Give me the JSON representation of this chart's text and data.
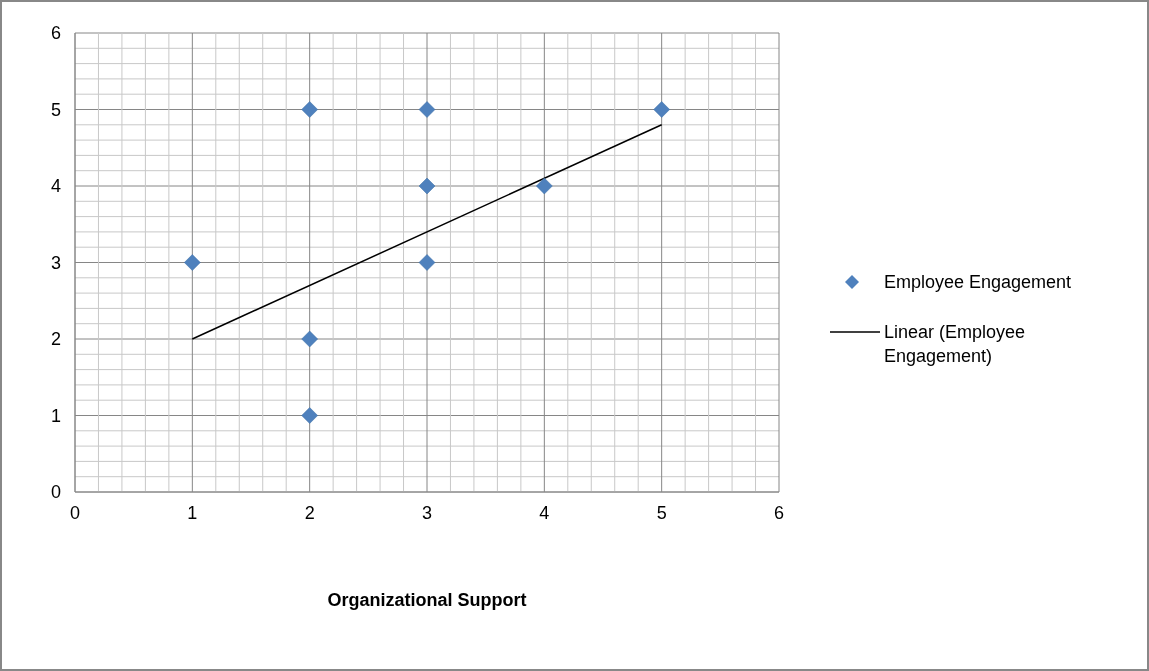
{
  "chart_data": {
    "type": "scatter",
    "xlabel": "Organizational Support",
    "legend": "right",
    "grid": true,
    "marker": "diamond",
    "xlim": [
      0,
      6
    ],
    "ylim": [
      0,
      6
    ],
    "xticks": [
      0,
      {
        "value": 0.2,
        "label": null
      },
      {
        "value": 0.4,
        "label": null
      },
      {
        "value": 0.6,
        "label": null
      },
      {
        "value": 0.8,
        "label": null
      },
      1,
      {
        "value": 1.2,
        "label": null
      },
      {
        "value": 1.4,
        "label": null
      },
      {
        "value": 1.6,
        "label": null
      },
      {
        "value": 1.8,
        "label": null
      },
      2,
      {
        "value": 2.2,
        "label": null
      },
      {
        "value": 2.4,
        "label": null
      },
      {
        "value": 2.6,
        "label": null
      },
      {
        "value": 2.8,
        "label": null
      },
      3,
      {
        "value": 3.2,
        "label": null
      },
      {
        "value": 3.4,
        "label": null
      },
      {
        "value": 3.6,
        "label": null
      },
      {
        "value": 3.8,
        "label": null
      },
      4,
      {
        "value": 4.2,
        "label": null
      },
      {
        "value": 4.4,
        "label": null
      },
      {
        "value": 4.6,
        "label": null
      },
      {
        "value": 4.8,
        "label": null
      },
      5,
      {
        "value": 5.2,
        "label": null
      },
      {
        "value": 5.4,
        "label": null
      },
      {
        "value": 5.6,
        "label": null
      },
      {
        "value": 5.8,
        "label": null
      },
      6
    ],
    "yticks": [
      0,
      {
        "value": 0.2,
        "label": null
      },
      {
        "value": 0.4,
        "label": null
      },
      {
        "value": 0.6,
        "label": null
      },
      {
        "value": 0.8,
        "label": null
      },
      1,
      {
        "value": 1.2,
        "label": null
      },
      {
        "value": 1.4,
        "label": null
      },
      {
        "value": 1.6,
        "label": null
      },
      {
        "value": 1.8,
        "label": null
      },
      2,
      {
        "value": 2.2,
        "label": null
      },
      {
        "value": 2.4,
        "label": null
      },
      {
        "value": 2.6,
        "label": null
      },
      {
        "value": 2.8,
        "label": null
      },
      3,
      {
        "value": 3.2,
        "label": null
      },
      {
        "value": 3.4,
        "label": null
      },
      {
        "value": 3.6,
        "label": null
      },
      {
        "value": 3.8,
        "label": null
      },
      4,
      {
        "value": 4.2,
        "label": null
      },
      {
        "value": 4.4,
        "label": null
      },
      {
        "value": 4.6,
        "label": null
      },
      {
        "value": 4.8,
        "label": null
      },
      5,
      {
        "value": 5.2,
        "label": null
      },
      {
        "value": 5.4,
        "label": null
      },
      {
        "value": 5.6,
        "label": null
      },
      {
        "value": 5.8,
        "label": null
      },
      6
    ],
    "series": [
      {
        "name": "Employee Engagement",
        "type": "scatter",
        "color": "#4f81bd",
        "x": [
          1,
          2,
          2,
          2,
          3,
          3,
          3,
          4,
          5
        ],
        "values": [
          3,
          5,
          2,
          1,
          5,
          4,
          3,
          4,
          5
        ]
      },
      {
        "name": "Linear (Employee Engagement)",
        "type": "line",
        "color": "#000000",
        "marker": "none",
        "x": [
          1,
          5
        ],
        "values": [
          2,
          4.8
        ]
      }
    ]
  }
}
